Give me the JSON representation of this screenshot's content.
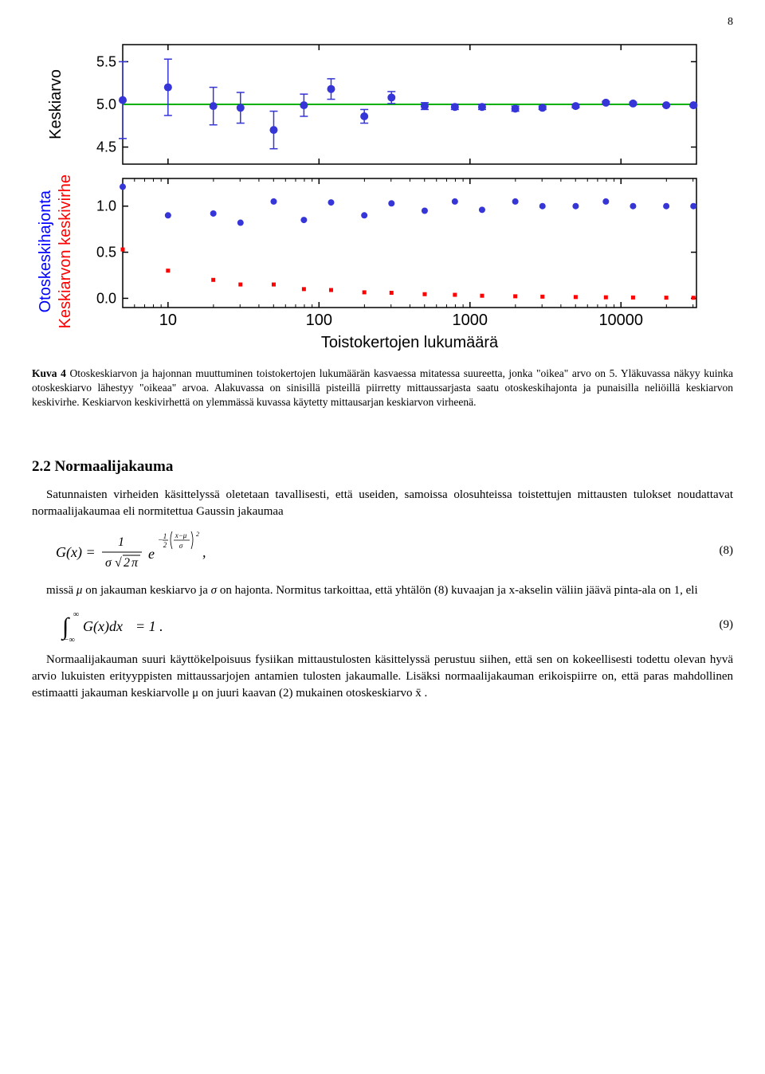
{
  "page_number": "8",
  "chart_top": {
    "type": "scatter-errorbar",
    "ylabel": "Keskiarvo",
    "ylabel_color": "#000000",
    "ylim": [
      4.3,
      5.7
    ],
    "ytick_values": [
      4.5,
      5.0,
      5.5
    ],
    "ytick_labels": [
      "4.5",
      "5.0",
      "5.5"
    ],
    "hline_y": 5.0,
    "hline_color": "#00b000",
    "marker_color": "#3535d8",
    "errorbar_color": "#3535d8",
    "background_color": "#ffffff",
    "border_color": "#000000",
    "marker_size": 5,
    "xlim_log": [
      0.7,
      4.5
    ],
    "points": [
      {
        "lx": 0.7,
        "y": 5.05,
        "err": 0.45
      },
      {
        "lx": 1.0,
        "y": 5.2,
        "err": 0.33
      },
      {
        "lx": 1.3,
        "y": 4.98,
        "err": 0.22
      },
      {
        "lx": 1.48,
        "y": 4.96,
        "err": 0.18
      },
      {
        "lx": 1.7,
        "y": 4.7,
        "err": 0.22
      },
      {
        "lx": 1.9,
        "y": 4.99,
        "err": 0.13
      },
      {
        "lx": 2.08,
        "y": 5.18,
        "err": 0.12
      },
      {
        "lx": 2.3,
        "y": 4.86,
        "err": 0.08
      },
      {
        "lx": 2.48,
        "y": 5.08,
        "err": 0.07
      },
      {
        "lx": 2.7,
        "y": 4.98,
        "err": 0.04
      },
      {
        "lx": 2.9,
        "y": 4.97,
        "err": 0.03
      },
      {
        "lx": 3.08,
        "y": 4.97,
        "err": 0.03
      },
      {
        "lx": 3.3,
        "y": 4.95,
        "err": 0.03
      },
      {
        "lx": 3.48,
        "y": 4.96,
        "err": 0.02
      },
      {
        "lx": 3.7,
        "y": 4.98,
        "err": 0.02
      },
      {
        "lx": 3.9,
        "y": 5.02,
        "err": 0.015
      },
      {
        "lx": 4.08,
        "y": 5.01,
        "err": 0.015
      },
      {
        "lx": 4.3,
        "y": 4.99,
        "err": 0.01
      },
      {
        "lx": 4.48,
        "y": 4.99,
        "err": 0.01
      }
    ]
  },
  "chart_bottom": {
    "type": "scatter",
    "ylabel_a": "Otoskeskihajonta",
    "ylabel_a_color": "#0000ff",
    "ylabel_b": "Keskiarvon keskivirhe",
    "ylabel_b_color": "#ff0000",
    "ylim": [
      -0.1,
      1.3
    ],
    "ytick_values": [
      0.0,
      0.5,
      1.0
    ],
    "ytick_labels": [
      "0.0",
      "0.5",
      "1.0"
    ],
    "background_color": "#ffffff",
    "border_color": "#000000",
    "series_blue": {
      "color": "#3535d8",
      "marker_size": 4,
      "points": [
        {
          "lx": 0.7,
          "y": 1.21
        },
        {
          "lx": 1.0,
          "y": 0.9
        },
        {
          "lx": 1.3,
          "y": 0.92
        },
        {
          "lx": 1.48,
          "y": 0.82
        },
        {
          "lx": 1.7,
          "y": 1.05
        },
        {
          "lx": 1.9,
          "y": 0.85
        },
        {
          "lx": 2.08,
          "y": 1.04
        },
        {
          "lx": 2.3,
          "y": 0.9
        },
        {
          "lx": 2.48,
          "y": 1.03
        },
        {
          "lx": 2.7,
          "y": 0.95
        },
        {
          "lx": 2.9,
          "y": 1.05
        },
        {
          "lx": 3.08,
          "y": 0.96
        },
        {
          "lx": 3.3,
          "y": 1.05
        },
        {
          "lx": 3.48,
          "y": 1.0
        },
        {
          "lx": 3.7,
          "y": 1.0
        },
        {
          "lx": 3.9,
          "y": 1.05
        },
        {
          "lx": 4.08,
          "y": 1.0
        },
        {
          "lx": 4.3,
          "y": 1.0
        },
        {
          "lx": 4.48,
          "y": 1.0
        }
      ]
    },
    "series_red": {
      "color": "#ff0000",
      "marker_size": 5,
      "points": [
        {
          "lx": 0.7,
          "y": 0.53
        },
        {
          "lx": 1.0,
          "y": 0.3
        },
        {
          "lx": 1.3,
          "y": 0.2
        },
        {
          "lx": 1.48,
          "y": 0.15
        },
        {
          "lx": 1.7,
          "y": 0.15
        },
        {
          "lx": 1.9,
          "y": 0.1
        },
        {
          "lx": 2.08,
          "y": 0.09
        },
        {
          "lx": 2.3,
          "y": 0.065
        },
        {
          "lx": 2.48,
          "y": 0.06
        },
        {
          "lx": 2.7,
          "y": 0.045
        },
        {
          "lx": 2.9,
          "y": 0.038
        },
        {
          "lx": 3.08,
          "y": 0.028
        },
        {
          "lx": 3.3,
          "y": 0.022
        },
        {
          "lx": 3.48,
          "y": 0.018
        },
        {
          "lx": 3.7,
          "y": 0.014
        },
        {
          "lx": 3.9,
          "y": 0.011
        },
        {
          "lx": 4.08,
          "y": 0.009
        },
        {
          "lx": 4.3,
          "y": 0.007
        },
        {
          "lx": 4.48,
          "y": 0.006
        }
      ]
    }
  },
  "x_axis": {
    "label": "Toistokertojen lukumäärä",
    "scale": "log",
    "ticks_major": [
      1,
      2,
      3,
      4
    ],
    "tick_labels": [
      "10",
      "100",
      "1000",
      "10000"
    ],
    "label_fontsize": 20
  },
  "caption": {
    "lead": "Kuva 4 ",
    "text": "Otoskeskiarvon ja hajonnan muuttuminen toistokertojen lukumäärän kasvaessa mitatessa suureetta, jonka \"oikea\" arvo on 5. Yläkuvassa näkyy kuinka otoskeskiarvo lähestyy \"oikeaa\" arvoa. Alakuvassa on sinisillä pisteillä piirretty mittaussarjasta saatu otoskeskihajonta ja punaisilla neliöillä keskiarvon keskivirhe. Keskiarvon keskivirhettä on ylemmässä kuvassa käytetty mittausarjan keskiarvon virheenä."
  },
  "section_heading": "2.2 Normaalijakauma",
  "para1": "Satunnaisten virheiden käsittelyssä oletetaan tavallisesti, että useiden, samoissa olosuhteissa toistettujen mittausten tulokset noudattavat normaalijakaumaa eli normitettua Gaussin jakaumaa",
  "eq8_num": "(8)",
  "para2_a": "missä ",
  "para2_b": " on jakauman keskiarvo ja ",
  "para2_c": " on hajonta. Normitus tarkoittaa, että yhtälön (8) kuvaajan ja x-akselin väliin jäävä pinta-ala on 1, eli",
  "eq9_num": "(9)",
  "para3": "Normaalijakauman suuri käyttökelpoisuus fysiikan mittaustulosten käsittelyssä perustuu siihen, että sen on kokeellisesti todettu olevan hyvä arvio lukuisten erityyppisten mittaussarjojen antamien tulosten jakaumalle. Lisäksi normaalijakauman erikoispiirre on, että paras mahdollinen estimaatti jakauman keskiarvolle μ on juuri kaavan (2) mukainen otoskeskiarvo x̄ ."
}
